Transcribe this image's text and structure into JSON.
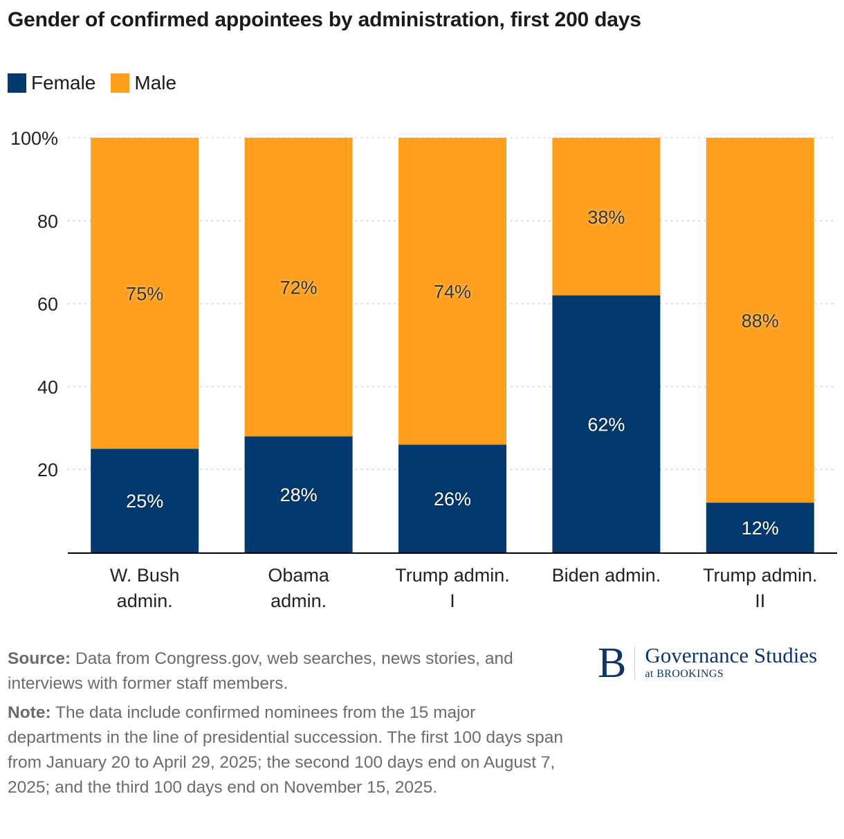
{
  "colors": {
    "female": "#023a6e",
    "male": "#fe9f1e",
    "grid": "#c8c8c8",
    "axis": "#000000"
  },
  "chart_data": {
    "type": "bar",
    "stacked": true,
    "title": "Gender of confirmed appointees by administration, first 200 days",
    "xlabel": "",
    "ylabel": "",
    "ylim": [
      0,
      100
    ],
    "yticks": [
      20,
      40,
      60,
      80,
      100
    ],
    "ytick_labels": [
      "20",
      "40",
      "60",
      "80",
      "100%"
    ],
    "grid": true,
    "legend_position": "top-left",
    "categories": [
      "W. Bush admin.",
      "Obama admin.",
      "Trump admin. I",
      "Biden admin.",
      "Trump admin. II"
    ],
    "category_lines": [
      [
        "W. Bush",
        "admin."
      ],
      [
        "Obama",
        "admin."
      ],
      [
        "Trump admin.",
        "I"
      ],
      [
        "Biden admin."
      ],
      [
        "Trump admin.",
        "II"
      ]
    ],
    "series": [
      {
        "name": "Female",
        "values": [
          25,
          28,
          26,
          62,
          12
        ],
        "labels": [
          "25%",
          "28%",
          "26%",
          "62%",
          "12%"
        ]
      },
      {
        "name": "Male",
        "values": [
          75,
          72,
          74,
          38,
          88
        ],
        "labels": [
          "75%",
          "72%",
          "74%",
          "38%",
          "88%"
        ]
      }
    ]
  },
  "legend": {
    "female": "Female",
    "male": "Male"
  },
  "footer": {
    "source_label": "Source:",
    "source_text": " Data from Congress.gov, web searches, news stories, and interviews with former staff members.",
    "note_label": "Note:",
    "note_text": " The data include confirmed nominees from the 15 major departments in the line of presidential succession. The first 100 days span from January 20 to April 29, 2025; the second 100 days end on August 7, 2025; and the third 100 days end on November 15, 2025."
  },
  "logo": {
    "letter": "B",
    "name": "Governance Studies",
    "sub": "at BROOKINGS"
  }
}
